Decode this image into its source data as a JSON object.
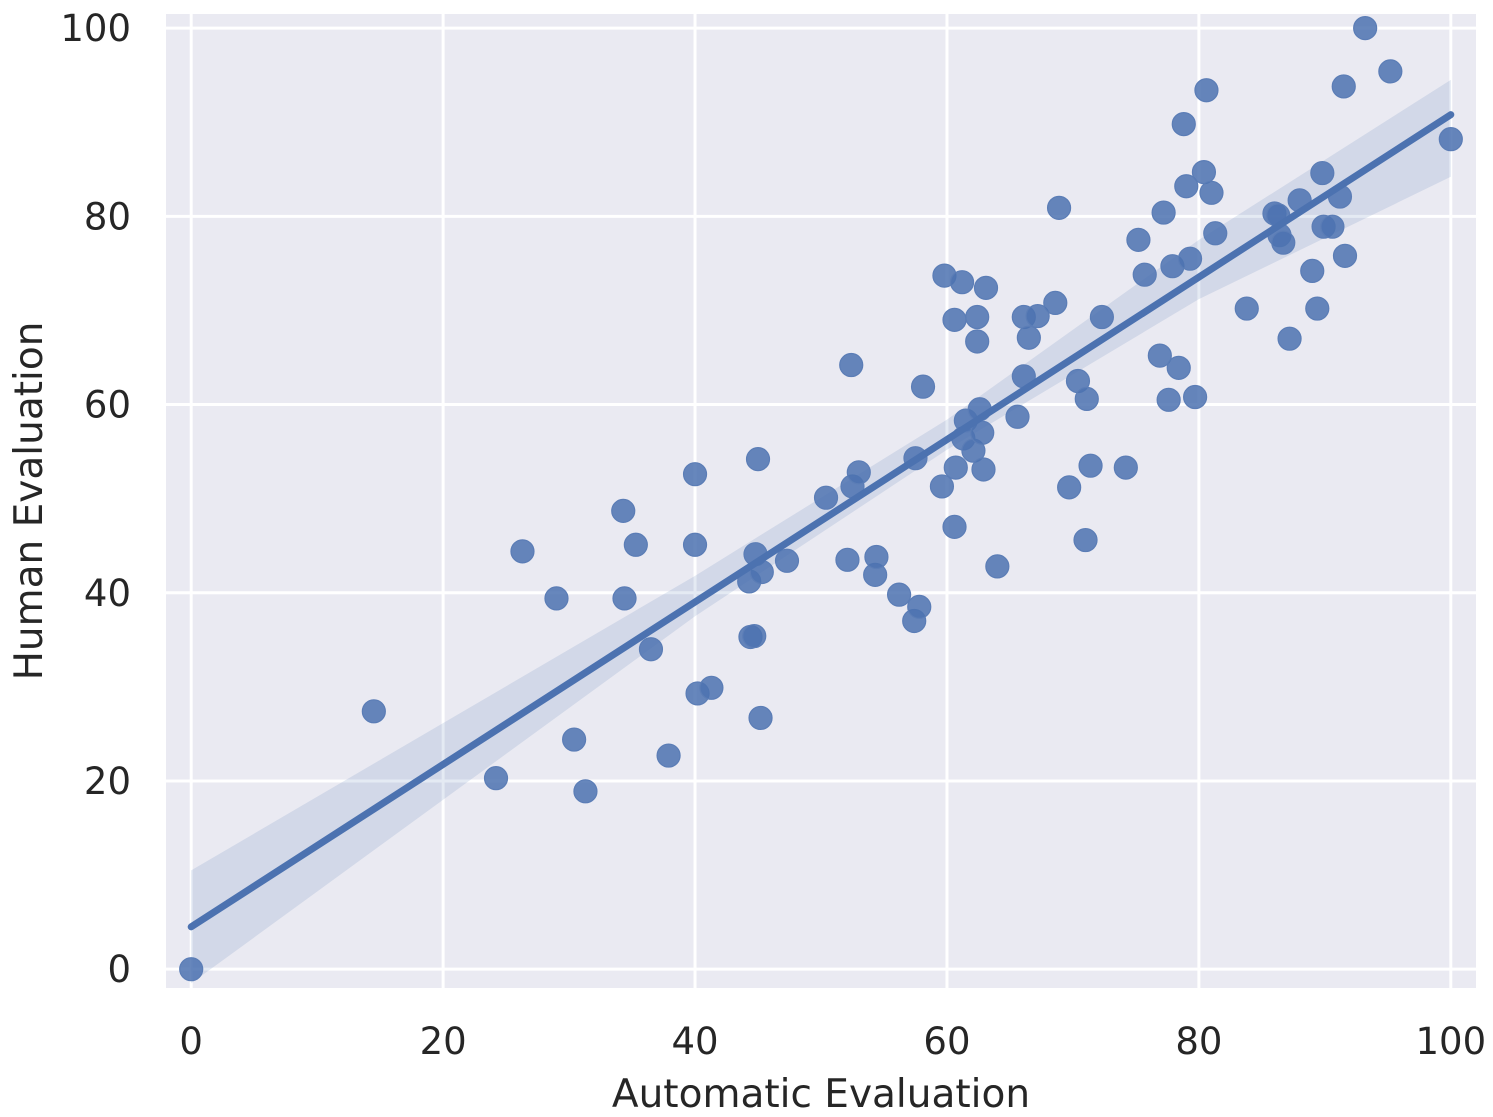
{
  "chart_data": {
    "type": "scatter",
    "xlabel": "Automatic Evaluation",
    "ylabel": "Human Evaluation",
    "xlim": [
      -2,
      102
    ],
    "ylim": [
      -2,
      101.5
    ],
    "xticks": [
      0,
      20,
      40,
      60,
      80,
      100
    ],
    "yticks": [
      0,
      20,
      40,
      60,
      80,
      100
    ],
    "grid": true,
    "colors": {
      "background": "#eaeaf2",
      "grid": "#ffffff",
      "series": "#4c72b0"
    },
    "regression": {
      "start": [
        0,
        4.5
      ],
      "end": [
        100,
        90.8
      ],
      "ci_lower": [
        [
          0,
          -1.5
        ],
        [
          40,
          37.5
        ],
        [
          60,
          55.2
        ],
        [
          80,
          71.2
        ],
        [
          100,
          84.2
        ]
      ],
      "ci_upper": [
        [
          0,
          10.5
        ],
        [
          40,
          41.8
        ],
        [
          60,
          58.4
        ],
        [
          80,
          77.5
        ],
        [
          100,
          94.5
        ]
      ]
    },
    "points": [
      [
        0,
        0
      ],
      [
        14.5,
        27.4
      ],
      [
        24.2,
        20.3
      ],
      [
        26.3,
        44.4
      ],
      [
        29.0,
        39.4
      ],
      [
        30.4,
        24.4
      ],
      [
        31.3,
        18.9
      ],
      [
        34.3,
        48.7
      ],
      [
        34.4,
        39.4
      ],
      [
        35.3,
        45.1
      ],
      [
        36.5,
        34.0
      ],
      [
        37.9,
        22.7
      ],
      [
        40.0,
        52.6
      ],
      [
        40.0,
        45.1
      ],
      [
        40.2,
        29.3
      ],
      [
        41.3,
        29.9
      ],
      [
        44.3,
        41.2
      ],
      [
        44.4,
        35.3
      ],
      [
        44.7,
        35.4
      ],
      [
        44.8,
        44.1
      ],
      [
        45.0,
        54.2
      ],
      [
        45.2,
        26.7
      ],
      [
        45.3,
        42.2
      ],
      [
        47.3,
        43.4
      ],
      [
        50.4,
        50.1
      ],
      [
        52.1,
        43.5
      ],
      [
        52.4,
        64.2
      ],
      [
        52.5,
        51.3
      ],
      [
        53.0,
        52.8
      ],
      [
        54.3,
        41.9
      ],
      [
        54.4,
        43.8
      ],
      [
        56.2,
        39.8
      ],
      [
        57.4,
        37.0
      ],
      [
        57.5,
        54.3
      ],
      [
        57.8,
        38.5
      ],
      [
        58.1,
        61.9
      ],
      [
        59.6,
        51.3
      ],
      [
        59.8,
        73.7
      ],
      [
        60.6,
        69.0
      ],
      [
        60.6,
        47.0
      ],
      [
        60.7,
        53.3
      ],
      [
        61.2,
        73.0
      ],
      [
        61.3,
        56.4
      ],
      [
        61.5,
        58.3
      ],
      [
        62.1,
        55.1
      ],
      [
        62.4,
        69.3
      ],
      [
        62.4,
        66.7
      ],
      [
        62.6,
        59.5
      ],
      [
        62.8,
        57.0
      ],
      [
        62.9,
        53.1
      ],
      [
        63.1,
        72.4
      ],
      [
        64.0,
        42.8
      ],
      [
        65.6,
        58.7
      ],
      [
        66.1,
        63.0
      ],
      [
        66.1,
        69.3
      ],
      [
        66.5,
        67.1
      ],
      [
        67.2,
        69.4
      ],
      [
        68.6,
        70.8
      ],
      [
        68.9,
        80.9
      ],
      [
        69.7,
        51.2
      ],
      [
        70.4,
        62.5
      ],
      [
        71.1,
        60.6
      ],
      [
        71.0,
        45.6
      ],
      [
        71.4,
        53.5
      ],
      [
        72.3,
        69.3
      ],
      [
        74.2,
        53.3
      ],
      [
        75.2,
        77.5
      ],
      [
        75.7,
        73.8
      ],
      [
        76.9,
        65.2
      ],
      [
        77.2,
        80.4
      ],
      [
        77.6,
        60.5
      ],
      [
        77.9,
        74.7
      ],
      [
        78.4,
        63.9
      ],
      [
        78.8,
        89.8
      ],
      [
        79.0,
        83.2
      ],
      [
        79.3,
        75.5
      ],
      [
        79.7,
        60.8
      ],
      [
        80.4,
        84.7
      ],
      [
        80.6,
        93.4
      ],
      [
        81.0,
        82.5
      ],
      [
        81.3,
        78.2
      ],
      [
        83.8,
        70.2
      ],
      [
        86.0,
        80.3
      ],
      [
        86.3,
        80.1
      ],
      [
        86.4,
        78.0
      ],
      [
        86.7,
        77.2
      ],
      [
        87.2,
        67.0
      ],
      [
        88.0,
        81.7
      ],
      [
        89.0,
        74.2
      ],
      [
        89.4,
        70.2
      ],
      [
        89.8,
        84.6
      ],
      [
        89.9,
        78.9
      ],
      [
        90.6,
        78.9
      ],
      [
        91.2,
        82.1
      ],
      [
        91.5,
        93.8
      ],
      [
        91.6,
        75.8
      ],
      [
        93.2,
        100.0
      ],
      [
        95.2,
        95.4
      ],
      [
        100.0,
        88.2
      ]
    ]
  }
}
